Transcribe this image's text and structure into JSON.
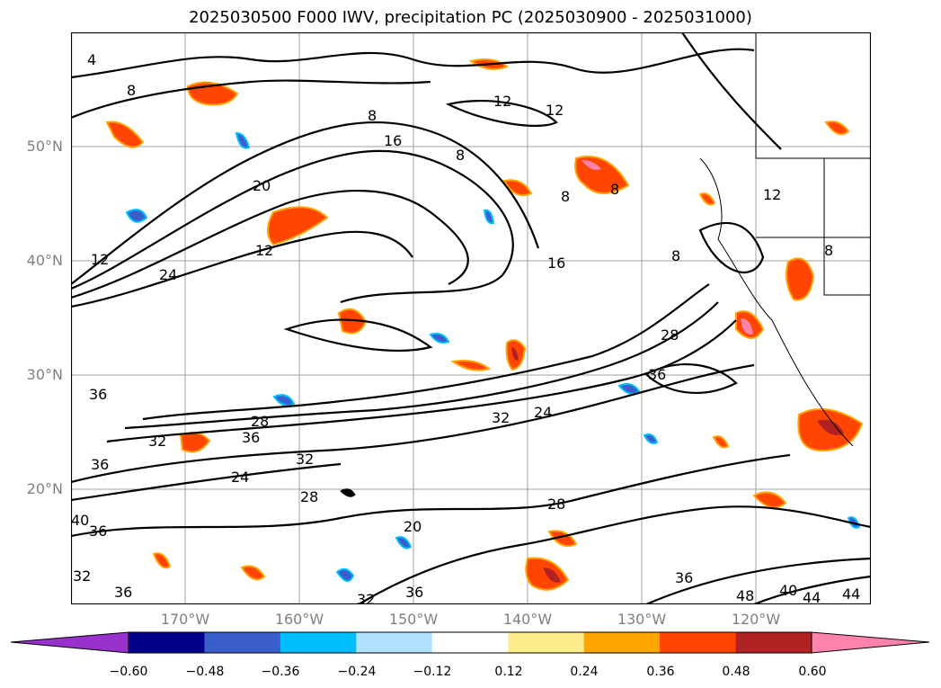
{
  "title": "2025030500 F000 IWV, precipitation PC (2025030900 - 2025031000)",
  "axes": {
    "lat_labels": [
      "50°N",
      "40°N",
      "30°N",
      "20°N"
    ],
    "lon_labels": [
      "170°W",
      "160°W",
      "150°W",
      "140°W",
      "130°W",
      "120°W"
    ]
  },
  "contour_labels": [
    "4",
    "8",
    "12",
    "12",
    "8",
    "16",
    "8",
    "20",
    "12",
    "24",
    "12",
    "16",
    "8",
    "8",
    "12",
    "8",
    "28",
    "36",
    "36",
    "28",
    "24",
    "32",
    "32",
    "36",
    "24",
    "32",
    "28",
    "20",
    "28",
    "36",
    "36",
    "32",
    "48",
    "40",
    "44",
    "44",
    "36",
    "40",
    "36",
    "32",
    "36",
    "8"
  ],
  "colorbar": {
    "ticks": [
      "−0.60",
      "−0.48",
      "−0.36",
      "−0.24",
      "−0.12",
      "0.12",
      "0.24",
      "0.36",
      "0.48",
      "0.60"
    ],
    "colors": [
      "#9932cc",
      "#00008b",
      "#3a5fcd",
      "#00bfff",
      "#b0e2ff",
      "#ffffff",
      "#ffec8b",
      "#ffa500",
      "#ff4500",
      "#b22222",
      "#ff82ab"
    ]
  }
}
